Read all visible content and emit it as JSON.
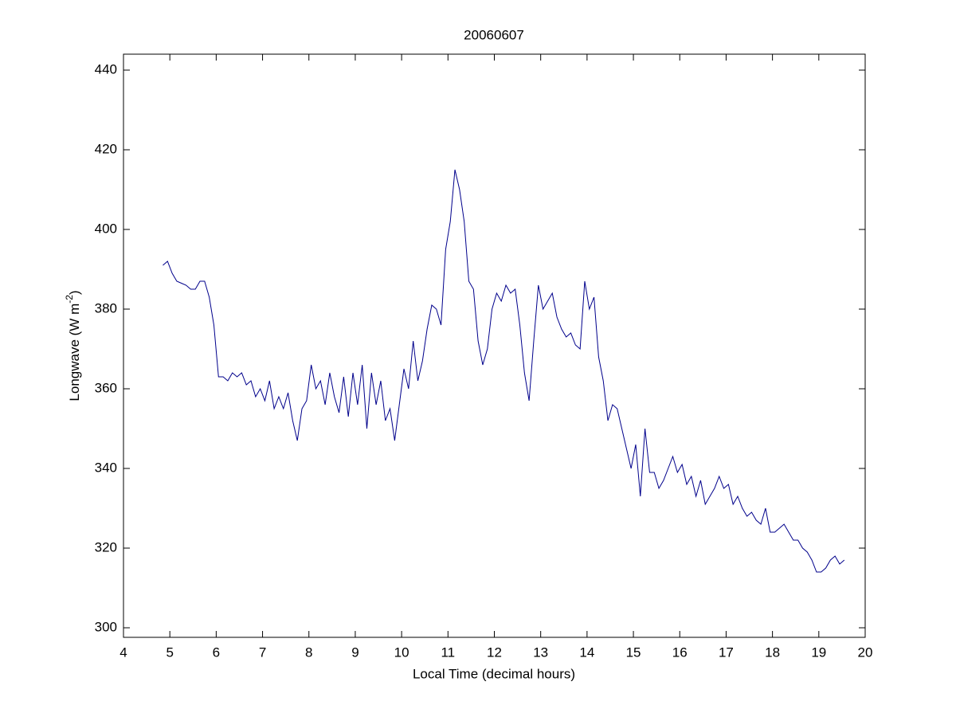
{
  "chart_data": {
    "type": "line",
    "title": "20060607",
    "xlabel": "Local Time (decimal hours)",
    "ylabel_parts": [
      "Longwave (W m",
      "-2",
      ")"
    ],
    "xlim": [
      4,
      20
    ],
    "ylim": [
      297.6,
      444
    ],
    "xticks": [
      4,
      5,
      6,
      7,
      8,
      9,
      10,
      11,
      12,
      13,
      14,
      15,
      16,
      17,
      18,
      19,
      20
    ],
    "yticks": [
      300,
      320,
      340,
      360,
      380,
      400,
      420,
      440
    ],
    "grid": false,
    "series": [
      {
        "name": "Longwave",
        "color": "#00008B",
        "x": [
          4.85,
          4.95,
          5.05,
          5.15,
          5.25,
          5.35,
          5.45,
          5.55,
          5.65,
          5.75,
          5.85,
          5.95,
          6.05,
          6.15,
          6.25,
          6.35,
          6.45,
          6.55,
          6.65,
          6.75,
          6.85,
          6.95,
          7.05,
          7.15,
          7.25,
          7.35,
          7.45,
          7.55,
          7.65,
          7.75,
          7.85,
          7.95,
          8.05,
          8.15,
          8.25,
          8.35,
          8.45,
          8.55,
          8.65,
          8.75,
          8.85,
          8.95,
          9.05,
          9.15,
          9.25,
          9.35,
          9.45,
          9.55,
          9.65,
          9.75,
          9.85,
          9.95,
          10.05,
          10.15,
          10.25,
          10.35,
          10.45,
          10.55,
          10.65,
          10.75,
          10.85,
          10.95,
          11.05,
          11.15,
          11.25,
          11.35,
          11.45,
          11.55,
          11.65,
          11.75,
          11.85,
          11.95,
          12.05,
          12.15,
          12.25,
          12.35,
          12.45,
          12.55,
          12.65,
          12.75,
          12.85,
          12.95,
          13.05,
          13.15,
          13.25,
          13.35,
          13.45,
          13.55,
          13.65,
          13.75,
          13.85,
          13.95,
          14.05,
          14.15,
          14.25,
          14.35,
          14.45,
          14.55,
          14.65,
          14.75,
          14.85,
          14.95,
          15.05,
          15.15,
          15.25,
          15.35,
          15.45,
          15.55,
          15.65,
          15.75,
          15.85,
          15.95,
          16.05,
          16.15,
          16.25,
          16.35,
          16.45,
          16.55,
          16.65,
          16.75,
          16.85,
          16.95,
          17.05,
          17.15,
          17.25,
          17.35,
          17.45,
          17.55,
          17.65,
          17.75,
          17.85,
          17.95,
          18.05,
          18.15,
          18.25,
          18.35,
          18.45,
          18.55,
          18.65,
          18.75,
          18.85,
          18.95,
          19.05,
          19.15,
          19.25,
          19.35,
          19.45,
          19.55
        ],
        "values": [
          391,
          392,
          389,
          387,
          386.5,
          386,
          385,
          385,
          387,
          387,
          383,
          376,
          363,
          363,
          362,
          364,
          363,
          364,
          361,
          362,
          358,
          360,
          357,
          362,
          355,
          358,
          355,
          359,
          352,
          347,
          355,
          357,
          366,
          360,
          362,
          356,
          364,
          358,
          354,
          363,
          353,
          364,
          356,
          366,
          350,
          364,
          356,
          362,
          352,
          355,
          347,
          356,
          365,
          360,
          372,
          362,
          367,
          375,
          381,
          380,
          376,
          395,
          402,
          415,
          410,
          402,
          387,
          385,
          372,
          366,
          370,
          380,
          384,
          382,
          386,
          384,
          385,
          376,
          364,
          357,
          372,
          386,
          380,
          382,
          384,
          378,
          375,
          373,
          374,
          371,
          370,
          387,
          380,
          383,
          368,
          362,
          352,
          356,
          355,
          350,
          345,
          340,
          346,
          333,
          350,
          339,
          339,
          335,
          337,
          340,
          343,
          339,
          341,
          336,
          338,
          333,
          337,
          331,
          333,
          335,
          338,
          335,
          336,
          331,
          333,
          330,
          328,
          329,
          327,
          326,
          330,
          324,
          324,
          325,
          326,
          324,
          322,
          322,
          320,
          319,
          317,
          314,
          314,
          315,
          317,
          318,
          316,
          317
        ]
      }
    ]
  }
}
